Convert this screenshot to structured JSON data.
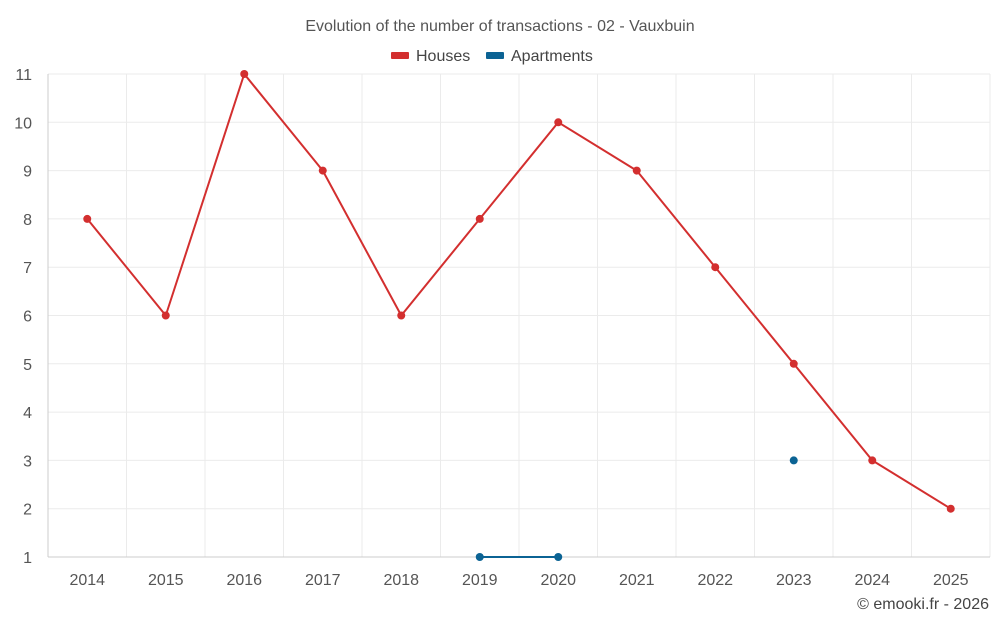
{
  "chart_data": {
    "type": "line",
    "title": "Evolution of the number of transactions - 02 - Vauxbuin",
    "x": [
      "2014",
      "2015",
      "2016",
      "2017",
      "2018",
      "2019",
      "2020",
      "2021",
      "2022",
      "2023",
      "2024",
      "2025"
    ],
    "yticks": [
      "1",
      "2",
      "3",
      "4",
      "5",
      "6",
      "7",
      "8",
      "9",
      "10",
      "11"
    ],
    "ylim": [
      1,
      11
    ],
    "grid": true,
    "legend_position": "top-center",
    "series": [
      {
        "name": "Houses",
        "color": "#d32f2f",
        "values": [
          8,
          6,
          11,
          9,
          6,
          8,
          10,
          9,
          7,
          5,
          3,
          2
        ]
      },
      {
        "name": "Apartments",
        "color": "#0b6394",
        "values": [
          null,
          null,
          null,
          null,
          null,
          1,
          1,
          null,
          null,
          3,
          null,
          null
        ]
      }
    ]
  },
  "credit": "© emooki.fr - 2026"
}
